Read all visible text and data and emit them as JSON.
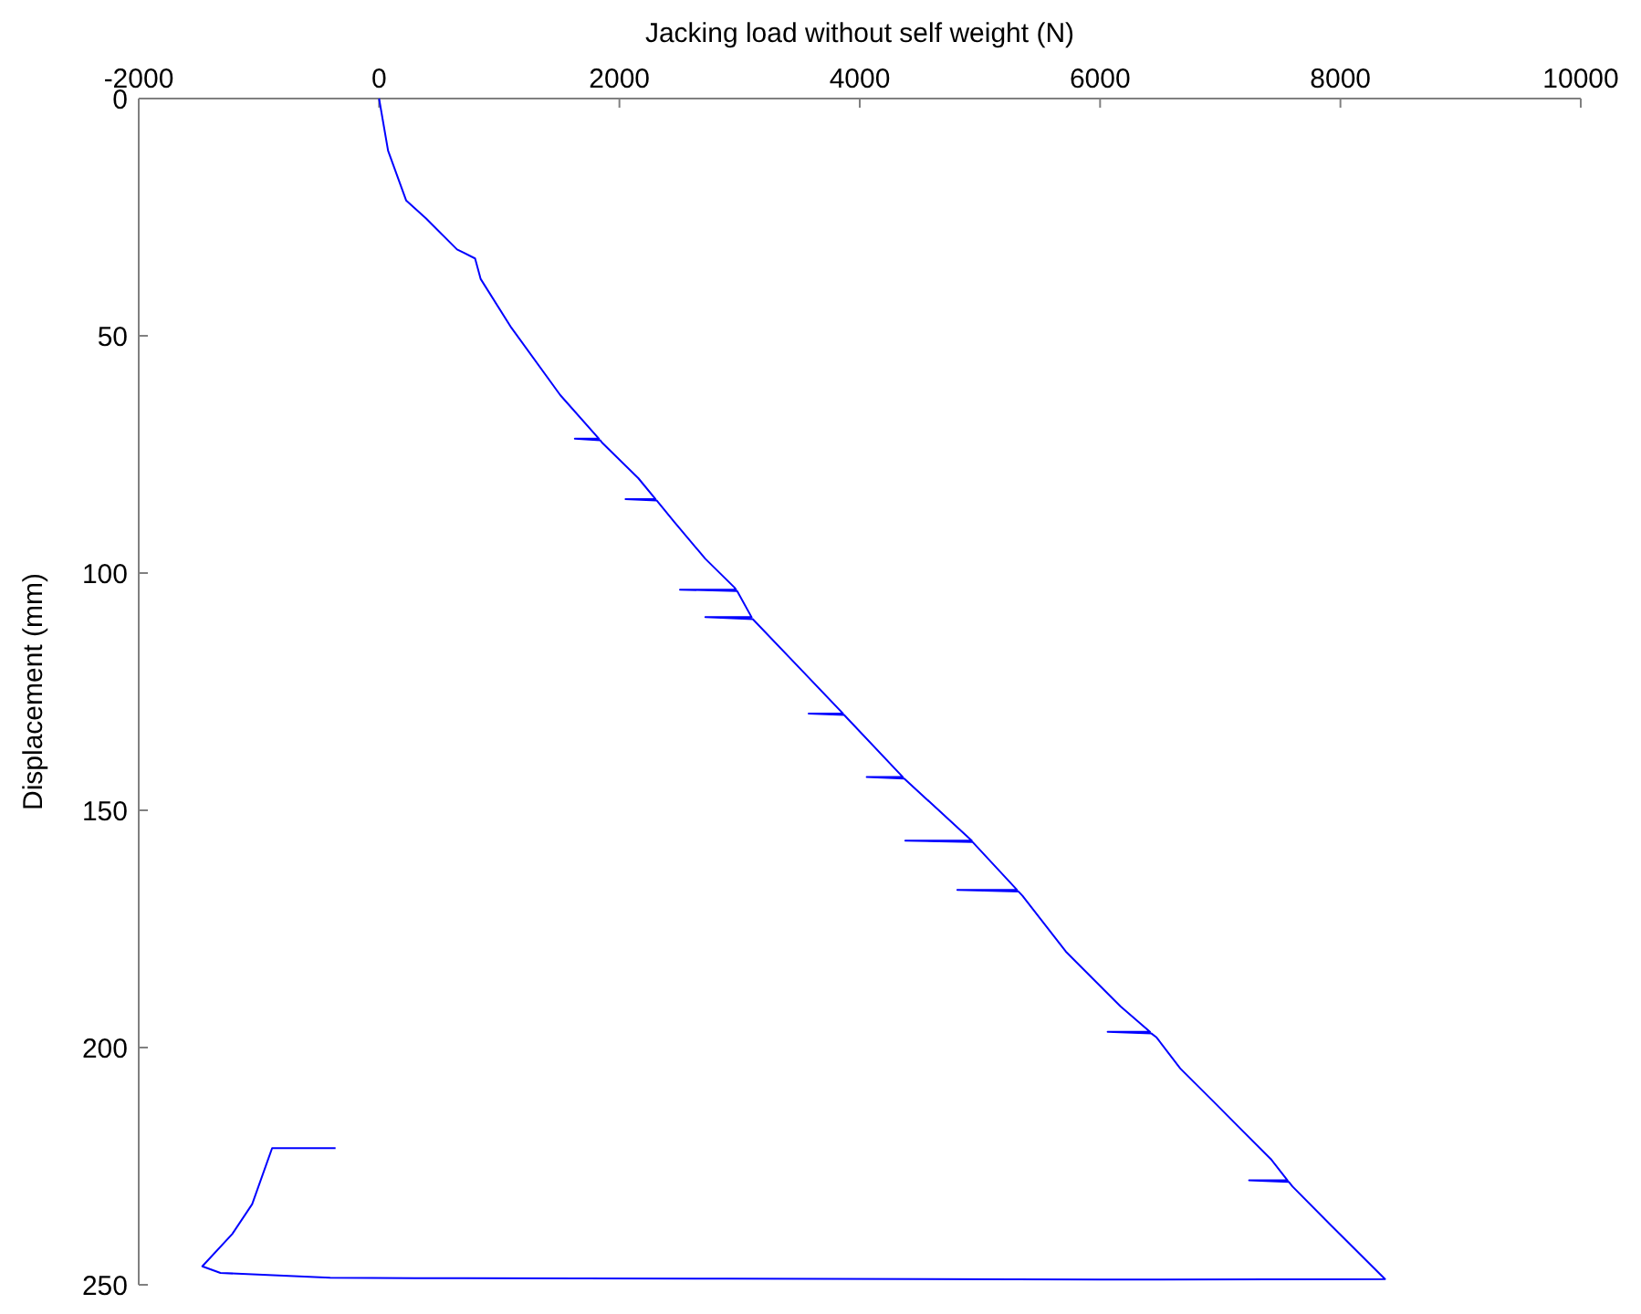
{
  "chart_data": {
    "type": "line",
    "xlabel": "Jacking load without self weight (N)",
    "ylabel": "Displacement (mm)",
    "xlim": [
      -2000,
      10000
    ],
    "xticks": [
      -2000,
      0,
      2000,
      4000,
      6000,
      8000,
      10000
    ],
    "ylim": [
      250,
      0
    ],
    "yticks": [
      0,
      50,
      100,
      150,
      200,
      250
    ],
    "grid": false,
    "marker": "none",
    "line_style": "solid",
    "series": [
      {
        "color": "#0000ff",
        "x": [
          0,
          75,
          226,
          392,
          649,
          799,
          845,
          1101,
          1508,
          1830,
          1629,
          1840,
          1855,
          2157,
          2300,
          2051,
          2310,
          2459,
          2715,
          2956,
          2970,
          2504,
          2980,
          3100,
          2715,
          3110,
          3514,
          3860,
          3575,
          3870,
          4359,
          4058,
          4370,
          4932,
          4379,
          4940,
          5310,
          4812,
          5320,
          5354,
          5716,
          6169,
          6415,
          6063,
          6425,
          6471,
          6667,
          6968,
          7164,
          7421,
          7560,
          7240,
          7570,
          7602,
          7919,
          8371,
          6000,
          2896,
          300,
          -407,
          -1320,
          -1471,
          -1222,
          -1056,
          -890,
          -362
        ],
        "values": [
          0,
          11,
          21.5,
          25.3,
          31.8,
          33.7,
          38,
          48.3,
          62.5,
          71.7,
          71.7,
          72,
          72.5,
          80,
          84.4,
          84.4,
          84.7,
          89.3,
          97,
          103,
          103.5,
          103.5,
          103.8,
          109.3,
          109.3,
          109.7,
          120.4,
          129.6,
          129.6,
          129.9,
          143,
          143,
          143.3,
          156.4,
          156.4,
          156.7,
          166.8,
          166.8,
          167.1,
          168,
          179.8,
          191.3,
          196.7,
          196.7,
          197,
          197.9,
          204.4,
          212,
          217,
          223.5,
          228,
          228,
          228.3,
          229.3,
          237.4,
          248.8,
          248.9,
          248.7,
          248.6,
          248.5,
          247.5,
          246.1,
          239.3,
          233,
          221.2,
          221.2
        ]
      }
    ]
  }
}
